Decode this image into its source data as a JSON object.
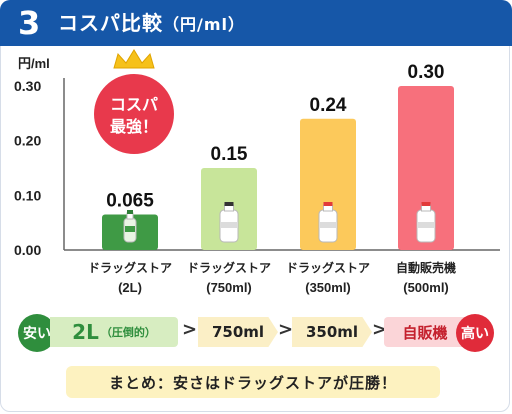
{
  "header": {
    "step_number": "3",
    "title": "コスパ比較",
    "title_unit": "（円/ml）"
  },
  "badge": {
    "line1": "コスパ",
    "line2": "最強！"
  },
  "chart_data": {
    "type": "bar",
    "ylabel": "円/ml",
    "ylim": [
      0,
      0.3
    ],
    "yticks": [
      "0.00",
      "0.10",
      "0.20",
      "0.30"
    ],
    "grid": false,
    "categories": [
      [
        "ドラッグストア",
        "(2L)"
      ],
      [
        "ドラッグストア",
        "(750ml)"
      ],
      [
        "ドラッグストア",
        "(350ml)"
      ],
      [
        "自動販売機",
        "(500ml)"
      ]
    ],
    "values": [
      0.065,
      0.15,
      0.24,
      0.3
    ],
    "value_labels": [
      "0.065",
      "0.15",
      "0.24",
      "0.30"
    ],
    "colors": [
      "#3f9a45",
      "#c8e59a",
      "#fcc95b",
      "#f7707c"
    ]
  },
  "flow": {
    "left_label": "安い",
    "step1_main": "2L",
    "step1_sub": "（圧倒的）",
    "step2": "750ml",
    "step3": "350ml",
    "step4": "自販機",
    "right_label": "高い",
    "arrow": ">"
  },
  "summary": "まとめ：安さはドラッグストアが圧勝！"
}
